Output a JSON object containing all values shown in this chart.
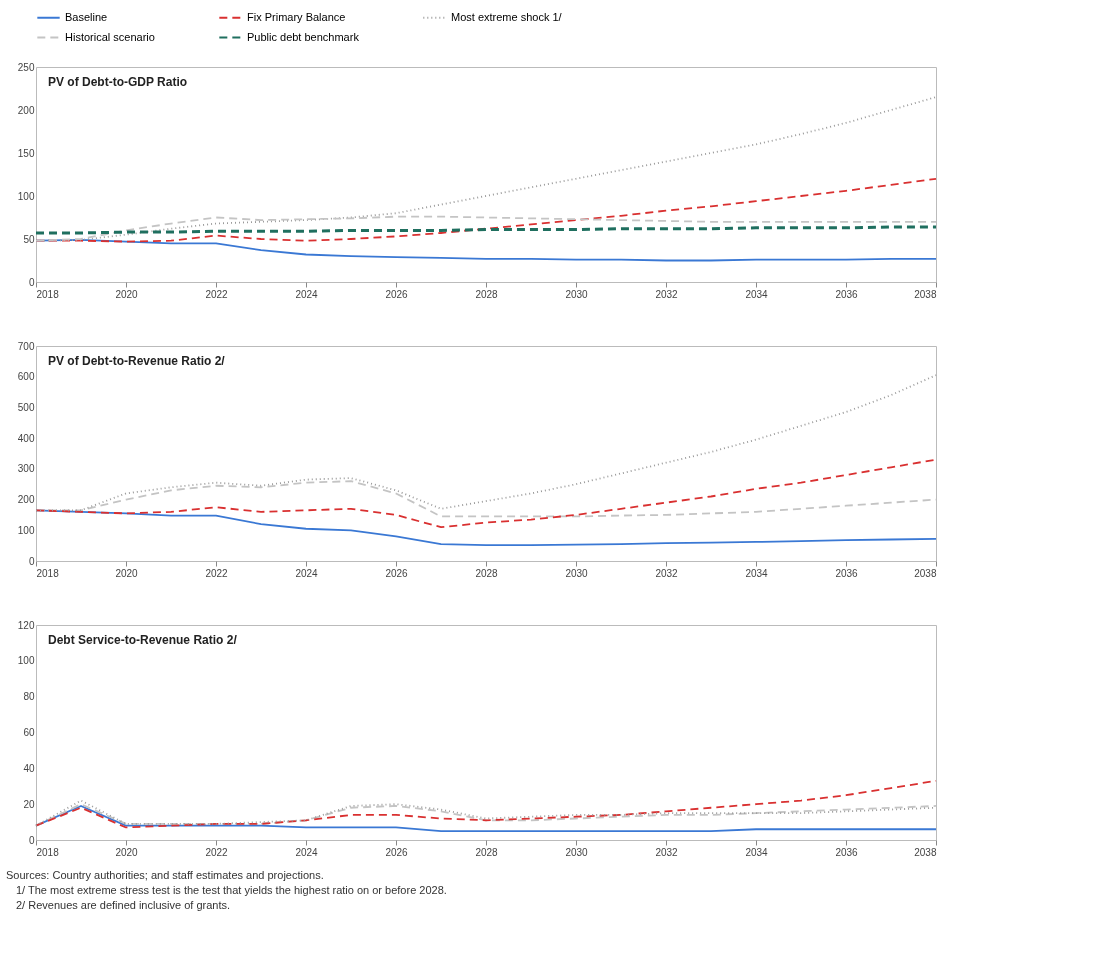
{
  "chart_data": [
    {
      "type": "line",
      "title": "PV of Debt-to-GDP Ratio",
      "x": [
        2018,
        2019,
        2020,
        2021,
        2022,
        2023,
        2024,
        2025,
        2026,
        2027,
        2028,
        2029,
        2030,
        2031,
        2032,
        2033,
        2034,
        2035,
        2036,
        2037,
        2038
      ],
      "xlim": [
        2018,
        2038
      ],
      "xticks": [
        2018,
        2020,
        2022,
        2024,
        2026,
        2028,
        2030,
        2032,
        2034,
        2036,
        2038
      ],
      "ylim": [
        0,
        250
      ],
      "yticks": [
        0,
        50,
        100,
        150,
        200,
        250
      ],
      "legend": "top",
      "grid": false,
      "series": [
        {
          "name": "Baseline",
          "color": "#3a78d4",
          "line_style": "solid",
          "values": [
            48,
            49,
            47,
            45,
            45,
            37,
            32,
            30,
            29,
            28,
            27,
            27,
            26,
            26,
            25,
            25,
            26,
            26,
            26,
            27,
            27
          ]
        },
        {
          "name": "Fix Primary Balance",
          "color": "#d93030",
          "line_style": "dashed",
          "values": [
            48,
            48,
            47,
            48,
            54,
            50,
            48,
            50,
            53,
            57,
            62,
            67,
            72,
            77,
            83,
            88,
            94,
            100,
            106,
            113,
            120
          ]
        },
        {
          "name": "Most extreme shock  1/",
          "color": "#9a9a9a",
          "line_style": "dotted",
          "values": [
            48,
            49,
            55,
            62,
            68,
            70,
            72,
            75,
            80,
            90,
            100,
            110,
            120,
            130,
            140,
            150,
            160,
            172,
            185,
            200,
            215
          ]
        },
        {
          "name": "Historical scenario",
          "color": "#c4c4c4",
          "line_style": "dashed",
          "values": [
            48,
            50,
            60,
            68,
            75,
            72,
            73,
            74,
            76,
            76,
            75,
            74,
            73,
            72,
            71,
            70,
            70,
            70,
            70,
            70,
            70
          ]
        },
        {
          "name": "Public debt benchmark",
          "color": "#1f6f5f",
          "line_style": "dashed",
          "values": [
            57,
            57,
            58,
            58,
            59,
            59,
            59,
            60,
            60,
            60,
            61,
            61,
            61,
            62,
            62,
            62,
            63,
            63,
            63,
            64,
            64
          ]
        }
      ]
    },
    {
      "type": "line",
      "title": "PV of Debt-to-Revenue Ratio 2/",
      "x": [
        2018,
        2019,
        2020,
        2021,
        2022,
        2023,
        2024,
        2025,
        2026,
        2027,
        2028,
        2029,
        2030,
        2031,
        2032,
        2033,
        2034,
        2035,
        2036,
        2037,
        2038
      ],
      "xlim": [
        2018,
        2038
      ],
      "xticks": [
        2018,
        2020,
        2022,
        2024,
        2026,
        2028,
        2030,
        2032,
        2034,
        2036,
        2038
      ],
      "ylim": [
        0,
        700
      ],
      "yticks": [
        0,
        100,
        200,
        300,
        400,
        500,
        600,
        700
      ],
      "grid": false,
      "series": [
        {
          "color": "#3a78d4",
          "line_style": "solid",
          "values": [
            165,
            160,
            155,
            148,
            148,
            120,
            105,
            100,
            80,
            55,
            52,
            52,
            53,
            55,
            58,
            60,
            62,
            65,
            68,
            70,
            72
          ]
        },
        {
          "color": "#c4c4c4",
          "line_style": "dashed",
          "values": [
            165,
            165,
            200,
            230,
            245,
            240,
            255,
            260,
            220,
            145,
            145,
            145,
            145,
            148,
            150,
            155,
            160,
            170,
            180,
            190,
            200
          ]
        },
        {
          "color": "#d93030",
          "line_style": "dashed",
          "values": [
            165,
            160,
            155,
            160,
            175,
            160,
            165,
            170,
            150,
            110,
            125,
            135,
            150,
            170,
            190,
            210,
            235,
            255,
            280,
            305,
            330
          ]
        },
        {
          "color": "#9a9a9a",
          "line_style": "dotted",
          "values": [
            165,
            165,
            220,
            240,
            255,
            245,
            265,
            270,
            230,
            170,
            195,
            220,
            250,
            285,
            320,
            355,
            395,
            440,
            485,
            540,
            605
          ]
        }
      ]
    },
    {
      "type": "line",
      "title": "Debt Service-to-Revenue Ratio 2/",
      "x": [
        2018,
        2019,
        2020,
        2021,
        2022,
        2023,
        2024,
        2025,
        2026,
        2027,
        2028,
        2029,
        2030,
        2031,
        2032,
        2033,
        2034,
        2035,
        2036,
        2037,
        2038
      ],
      "xlim": [
        2018,
        2038
      ],
      "xticks": [
        2018,
        2020,
        2022,
        2024,
        2026,
        2028,
        2030,
        2032,
        2034,
        2036,
        2038
      ],
      "ylim": [
        0,
        120
      ],
      "yticks": [
        0,
        20,
        40,
        60,
        80,
        100,
        120
      ],
      "grid": false,
      "annotations": [
        "Sources: Country authorities; and staff estimates and projections.",
        "1/ The most extreme stress test is the test that yields the highest ratio on or before 2028.",
        "2/ Revenues are defined inclusive of grants."
      ],
      "series": [
        {
          "color": "#3a78d4",
          "line_style": "solid",
          "values": [
            8,
            19,
            8,
            8,
            8,
            8,
            7,
            7,
            7,
            5,
            5,
            5,
            5,
            5,
            5,
            5,
            6,
            6,
            6,
            6,
            6
          ]
        },
        {
          "color": "#c4c4c4",
          "line_style": "dashed",
          "values": [
            8,
            20,
            9,
            9,
            9,
            9,
            11,
            18,
            19,
            16,
            11,
            11,
            12,
            13,
            14,
            14,
            15,
            16,
            17,
            18,
            19
          ]
        },
        {
          "color": "#d93030",
          "line_style": "dashed",
          "values": [
            8,
            18,
            7,
            8,
            9,
            9,
            11,
            14,
            14,
            12,
            11,
            12,
            13,
            14,
            16,
            18,
            20,
            22,
            25,
            29,
            33
          ]
        },
        {
          "color": "#9a9a9a",
          "line_style": "dotted",
          "values": [
            8,
            22,
            9,
            9,
            9,
            10,
            11,
            19,
            20,
            17,
            12,
            13,
            14,
            14,
            15,
            15,
            15,
            15,
            16,
            17,
            18
          ]
        }
      ]
    }
  ]
}
